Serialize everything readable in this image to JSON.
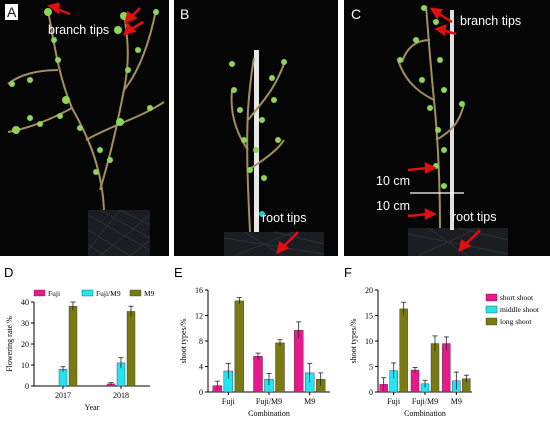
{
  "photos": {
    "A": {
      "letter": "A",
      "labels": [
        "branch tips"
      ]
    },
    "B": {
      "letter": "B",
      "labels": [
        "root tips"
      ]
    },
    "C": {
      "letter": "C",
      "labels": [
        "branch tips",
        "10 cm",
        "10 cm",
        "root tips"
      ]
    }
  },
  "colors": {
    "fuji": "#e8198c",
    "fuji_m9": "#22e4f2",
    "m9": "#7a7a12",
    "stem": "#d8d8d8",
    "leaf": "#8fd35a",
    "arrow": "#e01010"
  },
  "chart_data": [
    {
      "id": "D",
      "letter": "D",
      "type": "bar",
      "categories": [
        "2017",
        "2018"
      ],
      "series": [
        {
          "name": "Fuji",
          "values": [
            0,
            1
          ],
          "errors": [
            0,
            0.6
          ],
          "color": "#e8198c"
        },
        {
          "name": "Fuji/M9",
          "values": [
            8,
            11
          ],
          "errors": [
            1.2,
            2.5
          ],
          "color": "#22e4f2"
        },
        {
          "name": "M9",
          "values": [
            38,
            35.5
          ],
          "errors": [
            2,
            2.5
          ],
          "color": "#7a7a12"
        }
      ],
      "ylabel": "Flowering rate %",
      "xlabel": "Year",
      "ylim": [
        0,
        40
      ],
      "yticks": [
        0,
        10,
        20,
        30,
        40
      ],
      "legend": "top"
    },
    {
      "id": "E",
      "letter": "E",
      "type": "bar",
      "categories": [
        "Fuji",
        "Fuji/M9",
        "M9"
      ],
      "series": [
        {
          "values": [
            1,
            5.6,
            9.7
          ],
          "errors": [
            0.7,
            0.5,
            1.3
          ],
          "color": "#e8198c"
        },
        {
          "values": [
            3.3,
            2,
            3
          ],
          "errors": [
            1.2,
            0.9,
            1.5
          ],
          "color": "#22e4f2"
        },
        {
          "values": [
            14.3,
            7.7,
            2
          ],
          "errors": [
            0.5,
            0.5,
            1.0
          ],
          "color": "#7a7a12"
        }
      ],
      "ylabel": "shoot types/%",
      "xlabel": "Combination",
      "ylim": [
        0,
        16
      ],
      "yticks": [
        0,
        4,
        8,
        12,
        16
      ]
    },
    {
      "id": "F",
      "letter": "F",
      "type": "bar",
      "categories": [
        "Fuji",
        "Fuji/M9",
        "M9"
      ],
      "series": [
        {
          "name": "short shoot",
          "values": [
            1.5,
            4.3,
            9.5
          ],
          "errors": [
            1.3,
            0.5,
            1.3
          ],
          "color": "#e8198c"
        },
        {
          "name": "middle shoot",
          "values": [
            4.2,
            1.6,
            2.2
          ],
          "errors": [
            1.5,
            0.7,
            1.7
          ],
          "color": "#22e4f2"
        },
        {
          "name": "long shoot",
          "values": [
            16.3,
            9.5,
            2.6
          ],
          "errors": [
            1.3,
            1.5,
            0.7
          ],
          "color": "#7a7a12"
        }
      ],
      "ylabel": "shoot types/%",
      "xlabel": "Combination",
      "ylim": [
        0,
        20
      ],
      "yticks": [
        0,
        5,
        10,
        15,
        20
      ],
      "legend": "right"
    }
  ]
}
